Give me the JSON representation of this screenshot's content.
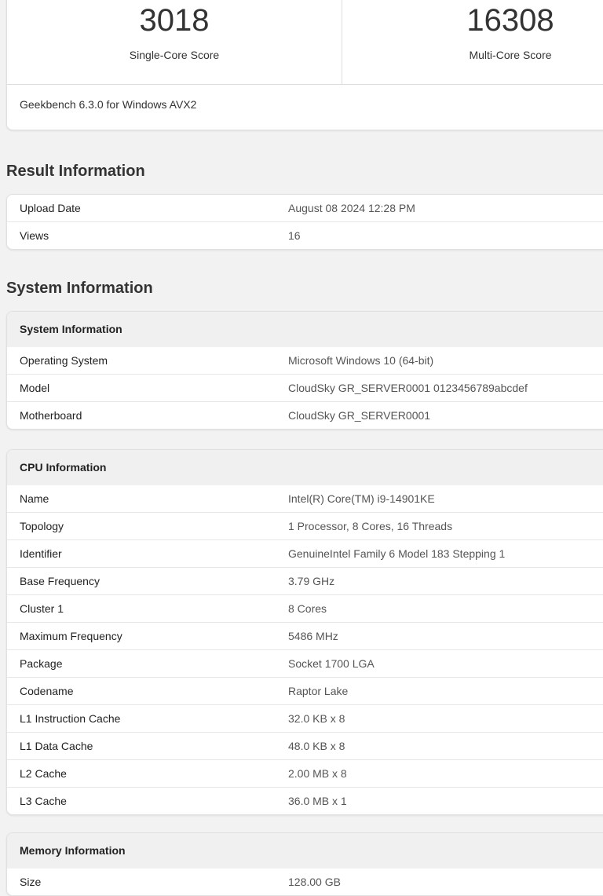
{
  "scores": {
    "single": {
      "value": "3018",
      "label": "Single-Core Score"
    },
    "multi": {
      "value": "16308",
      "label": "Multi-Core Score"
    },
    "version": "Geekbench 6.3.0 for Windows AVX2"
  },
  "result_info": {
    "title": "Result Information",
    "rows": [
      {
        "k": "Upload Date",
        "v": "August 08 2024 12:28 PM"
      },
      {
        "k": "Views",
        "v": "16"
      }
    ]
  },
  "system_heading": "System Information",
  "system_info": {
    "title": "System Information",
    "rows": [
      {
        "k": "Operating System",
        "v": "Microsoft Windows 10 (64-bit)"
      },
      {
        "k": "Model",
        "v": "CloudSky GR_SERVER0001 0123456789abcdef"
      },
      {
        "k": "Motherboard",
        "v": "CloudSky GR_SERVER0001"
      }
    ]
  },
  "cpu_info": {
    "title": "CPU Information",
    "rows": [
      {
        "k": "Name",
        "v": "Intel(R) Core(TM) i9-14901KE"
      },
      {
        "k": "Topology",
        "v": "1 Processor, 8 Cores, 16 Threads"
      },
      {
        "k": "Identifier",
        "v": "GenuineIntel Family 6 Model 183 Stepping 1"
      },
      {
        "k": "Base Frequency",
        "v": "3.79 GHz"
      },
      {
        "k": "Cluster 1",
        "v": "8 Cores"
      },
      {
        "k": "Maximum Frequency",
        "v": "5486 MHz"
      },
      {
        "k": "Package",
        "v": "Socket 1700 LGA"
      },
      {
        "k": "Codename",
        "v": "Raptor Lake"
      },
      {
        "k": "L1 Instruction Cache",
        "v": "32.0 KB x 8"
      },
      {
        "k": "L1 Data Cache",
        "v": "48.0 KB x 8"
      },
      {
        "k": "L2 Cache",
        "v": "2.00 MB x 8"
      },
      {
        "k": "L3 Cache",
        "v": "36.0 MB x 1"
      }
    ]
  },
  "memory_info": {
    "title": "Memory Information",
    "rows": [
      {
        "k": "Size",
        "v": "128.00 GB"
      }
    ]
  }
}
